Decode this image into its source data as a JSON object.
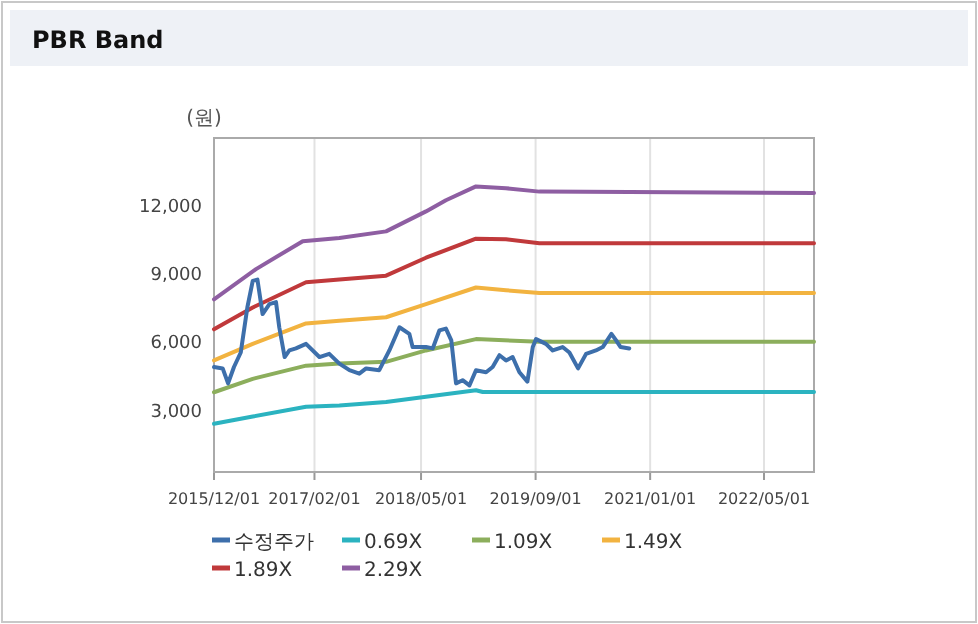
{
  "chart_data": {
    "type": "line",
    "title": "PBR Band",
    "ylabel": "(원)",
    "xlim": [
      "2015-12-01",
      "2022-11-30"
    ],
    "ylim": [
      300,
      15000
    ],
    "xticks": [
      {
        "value": "2015-12-01",
        "label": "2015/12/01"
      },
      {
        "value": "2017-02-01",
        "label": "2017/02/01"
      },
      {
        "value": "2018-05-01",
        "label": "2018/05/01"
      },
      {
        "value": "2019-09-01",
        "label": "2019/09/01"
      },
      {
        "value": "2021-01-01",
        "label": "2021/01/01"
      },
      {
        "value": "2022-05-01",
        "label": "2022/05/01"
      }
    ],
    "yticks": [
      {
        "value": 3000,
        "label": "3,000"
      },
      {
        "value": 6000,
        "label": "6,000"
      },
      {
        "value": 9000,
        "label": "9,000"
      },
      {
        "value": 12000,
        "label": "12,000"
      }
    ],
    "grid": "x",
    "legend": "bottom",
    "line_style": "solid",
    "marker": "none",
    "series": [
      {
        "name": "수정주가",
        "color": "#3d6fab",
        "x": [
          "2015-12-01",
          "2016-01-07",
          "2016-01-30",
          "2016-02-24",
          "2016-03-24",
          "2016-04-21",
          "2016-05-14",
          "2016-06-03",
          "2016-06-25",
          "2016-07-24",
          "2016-08-21",
          "2016-09-04",
          "2016-09-27",
          "2016-10-17",
          "2016-11-14",
          "2016-12-27",
          "2017-02-22",
          "2017-04-05",
          "2017-05-18",
          "2017-06-30",
          "2017-08-11",
          "2017-09-09",
          "2017-11-04",
          "2017-12-17",
          "2018-01-29",
          "2018-03-12",
          "2018-03-26",
          "2018-05-22",
          "2018-06-20",
          "2018-07-18",
          "2018-08-15",
          "2018-09-07",
          "2018-09-27",
          "2018-10-25",
          "2018-11-23",
          "2018-12-21",
          "2019-02-02",
          "2019-03-02",
          "2019-03-31",
          "2019-04-28",
          "2019-05-26",
          "2019-06-24",
          "2019-07-28",
          "2019-08-20",
          "2019-09-03",
          "2019-10-15",
          "2019-11-13",
          "2019-12-25",
          "2020-01-23",
          "2020-02-29",
          "2020-04-03",
          "2020-05-15",
          "2020-06-13",
          "2020-07-20",
          "2020-08-09",
          "2020-08-28",
          "2020-10-04"
        ],
        "values": [
          4920,
          4860,
          4200,
          4920,
          5560,
          7540,
          8710,
          8770,
          7250,
          7690,
          7780,
          6670,
          5360,
          5650,
          5740,
          5940,
          5360,
          5500,
          5070,
          4780,
          4630,
          4860,
          4780,
          5650,
          6670,
          6380,
          5800,
          5800,
          5740,
          6530,
          6610,
          6090,
          4200,
          4340,
          4110,
          4780,
          4690,
          4920,
          5440,
          5210,
          5360,
          4690,
          4280,
          5800,
          6150,
          5940,
          5650,
          5800,
          5560,
          4860,
          5500,
          5650,
          5800,
          6380,
          6090,
          5800,
          5740
        ]
      },
      {
        "name": "0.69X",
        "color": "#2bb3c0",
        "x": [
          "2015-12-01",
          "2016-05-14",
          "2016-12-27",
          "2017-05-18",
          "2017-12-03",
          "2018-05-22",
          "2018-12-21",
          "2019-01-19",
          "2022-11-30"
        ],
        "values": [
          2420,
          2740,
          3170,
          3230,
          3380,
          3610,
          3900,
          3820,
          3820
        ]
      },
      {
        "name": "1.09X",
        "color": "#8cae5c",
        "x": [
          "2015-12-01",
          "2016-05-14",
          "2016-12-27",
          "2017-05-18",
          "2017-12-03",
          "2018-05-22",
          "2018-12-21",
          "2019-09-17",
          "2022-11-30"
        ],
        "values": [
          3810,
          4400,
          4980,
          5070,
          5150,
          5650,
          6150,
          6030,
          6030
        ]
      },
      {
        "name": "1.49X",
        "color": "#f2b340",
        "x": [
          "2015-12-01",
          "2016-05-14",
          "2016-12-27",
          "2017-05-18",
          "2017-12-03",
          "2018-05-22",
          "2018-12-21",
          "2019-04-28",
          "2019-09-17",
          "2022-11-30"
        ],
        "values": [
          5210,
          5940,
          6840,
          6960,
          7110,
          7690,
          8420,
          8300,
          8180,
          8180
        ]
      },
      {
        "name": "1.89X",
        "color": "#c0393b",
        "x": [
          "2015-12-01",
          "2016-05-14",
          "2016-12-27",
          "2017-05-18",
          "2017-12-03",
          "2018-05-22",
          "2018-12-21",
          "2019-04-28",
          "2019-09-17",
          "2022-11-30"
        ],
        "values": [
          6580,
          7540,
          8650,
          8770,
          8940,
          9730,
          10570,
          10540,
          10370,
          10370
        ]
      },
      {
        "name": "2.29X",
        "color": "#8e5ea2",
        "x": [
          "2015-12-01",
          "2016-05-28",
          "2016-12-13",
          "2017-05-18",
          "2017-12-03",
          "2018-05-22",
          "2018-08-15",
          "2018-12-21",
          "2019-04-28",
          "2019-09-17",
          "2022-11-30"
        ],
        "values": [
          7900,
          9230,
          10460,
          10600,
          10890,
          11770,
          12260,
          12870,
          12790,
          12640,
          12580
        ]
      }
    ]
  }
}
